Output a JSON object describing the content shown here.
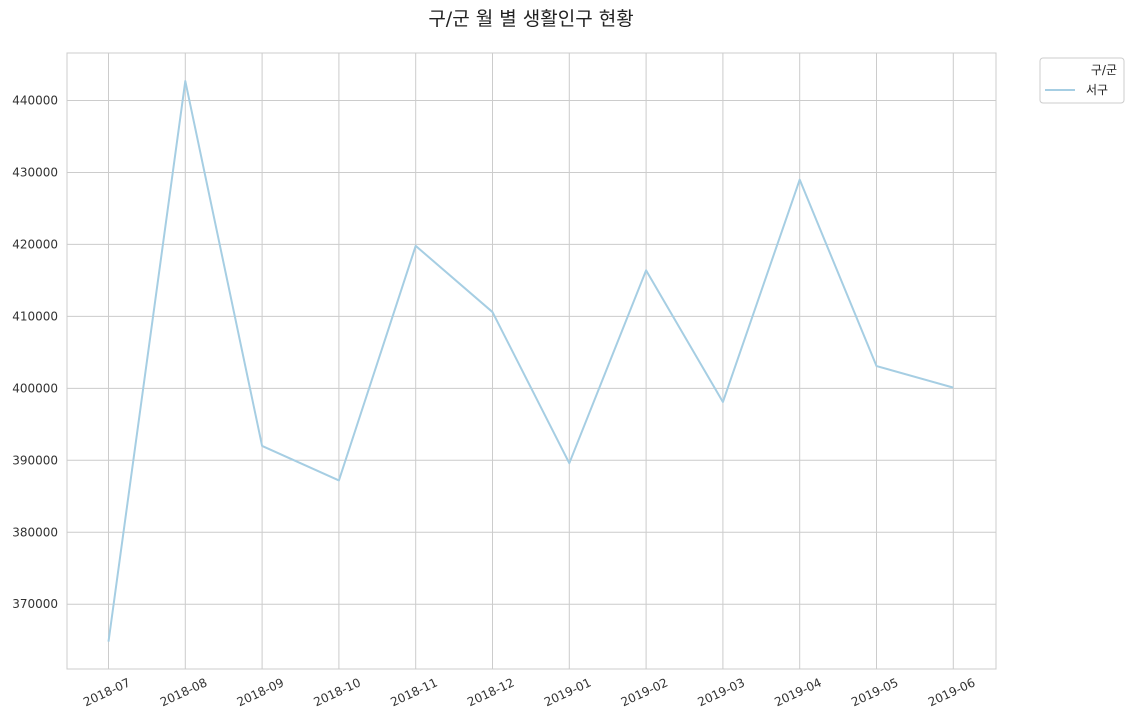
{
  "chart_data": {
    "type": "line",
    "title": "구/군 월 별 생활인구 현황",
    "xlabel": "",
    "ylabel": "",
    "categories": [
      "2018-07",
      "2018-08",
      "2018-09",
      "2018-10",
      "2018-11",
      "2018-12",
      "2019-01",
      "2019-02",
      "2019-03",
      "2019-04",
      "2019-05",
      "2019-06"
    ],
    "series": [
      {
        "name": "서구",
        "color": "#a6cee3",
        "values": [
          364800,
          442700,
          392000,
          387200,
          419800,
          410600,
          389600,
          416400,
          398100,
          429000,
          403100,
          400100
        ]
      }
    ],
    "ylim": [
      361000,
      446600
    ],
    "yticks": [
      "370000",
      "380000",
      "390000",
      "400000",
      "410000",
      "420000",
      "430000",
      "440000"
    ],
    "grid": true,
    "legend": {
      "title": "구/군",
      "placement": "outside-top-right"
    }
  }
}
